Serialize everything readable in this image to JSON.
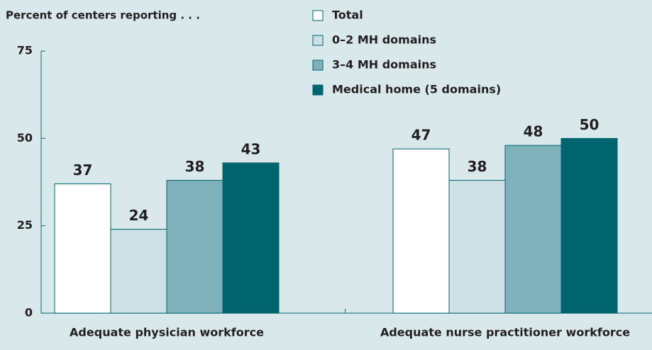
{
  "chart_data": {
    "type": "bar",
    "title": "Percent of centers reporting . . .",
    "categories": [
      "Adequate physician workforce",
      "Adequate nurse practitioner workforce"
    ],
    "series": [
      {
        "name": "Total",
        "color": "#ffffff",
        "values": [
          37,
          47
        ]
      },
      {
        "name": "0–2 MH domains",
        "color": "#cde0e3",
        "values": [
          24,
          38
        ]
      },
      {
        "name": "3–4 MH domains",
        "color": "#7fb1bb",
        "values": [
          38,
          48
        ]
      },
      {
        "name": "Medical home (5 domains)",
        "color": "#00646e",
        "values": [
          43,
          50
        ]
      }
    ],
    "ylim": [
      0,
      75
    ],
    "yticks": [
      0,
      25,
      50,
      75
    ],
    "grid": false
  }
}
